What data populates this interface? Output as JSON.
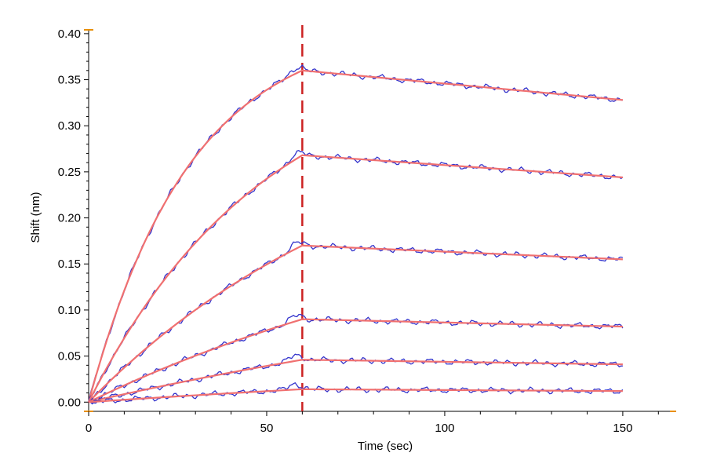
{
  "chart_data": {
    "type": "line",
    "title": "",
    "xlabel": "Time (sec)",
    "ylabel": "Shift (nm)",
    "xlim": [
      0,
      165
    ],
    "ylim": [
      -0.01,
      0.405
    ],
    "x_ticks": [
      0,
      50,
      100,
      150
    ],
    "x_tick_labels": [
      "0",
      "50",
      "100",
      "150"
    ],
    "y_ticks": [
      0.0,
      0.05,
      0.1,
      0.15,
      0.2,
      0.25,
      0.3,
      0.35,
      0.4
    ],
    "y_tick_labels": [
      "0.00",
      "0.05",
      "0.10",
      "0.15",
      "0.20",
      "0.25",
      "0.30",
      "0.35",
      "0.40"
    ],
    "association_end_marker": {
      "x": 60,
      "color": "#cc2222",
      "style": "dashed"
    },
    "colors": {
      "measured": "#3333cc",
      "fit": "#f07070",
      "axis_accent": "#e8900a"
    },
    "grid": false,
    "series": [
      {
        "peak": 0.36,
        "end": 0.328
      },
      {
        "peak": 0.268,
        "end": 0.244
      },
      {
        "peak": 0.17,
        "end": 0.155
      },
      {
        "peak": 0.09,
        "end": 0.082
      },
      {
        "peak": 0.046,
        "end": 0.041
      },
      {
        "peak": 0.014,
        "end": 0.012
      }
    ],
    "curve_rates": [
      0.035,
      0.02,
      0.012,
      0.008,
      0.005,
      0.004
    ]
  }
}
